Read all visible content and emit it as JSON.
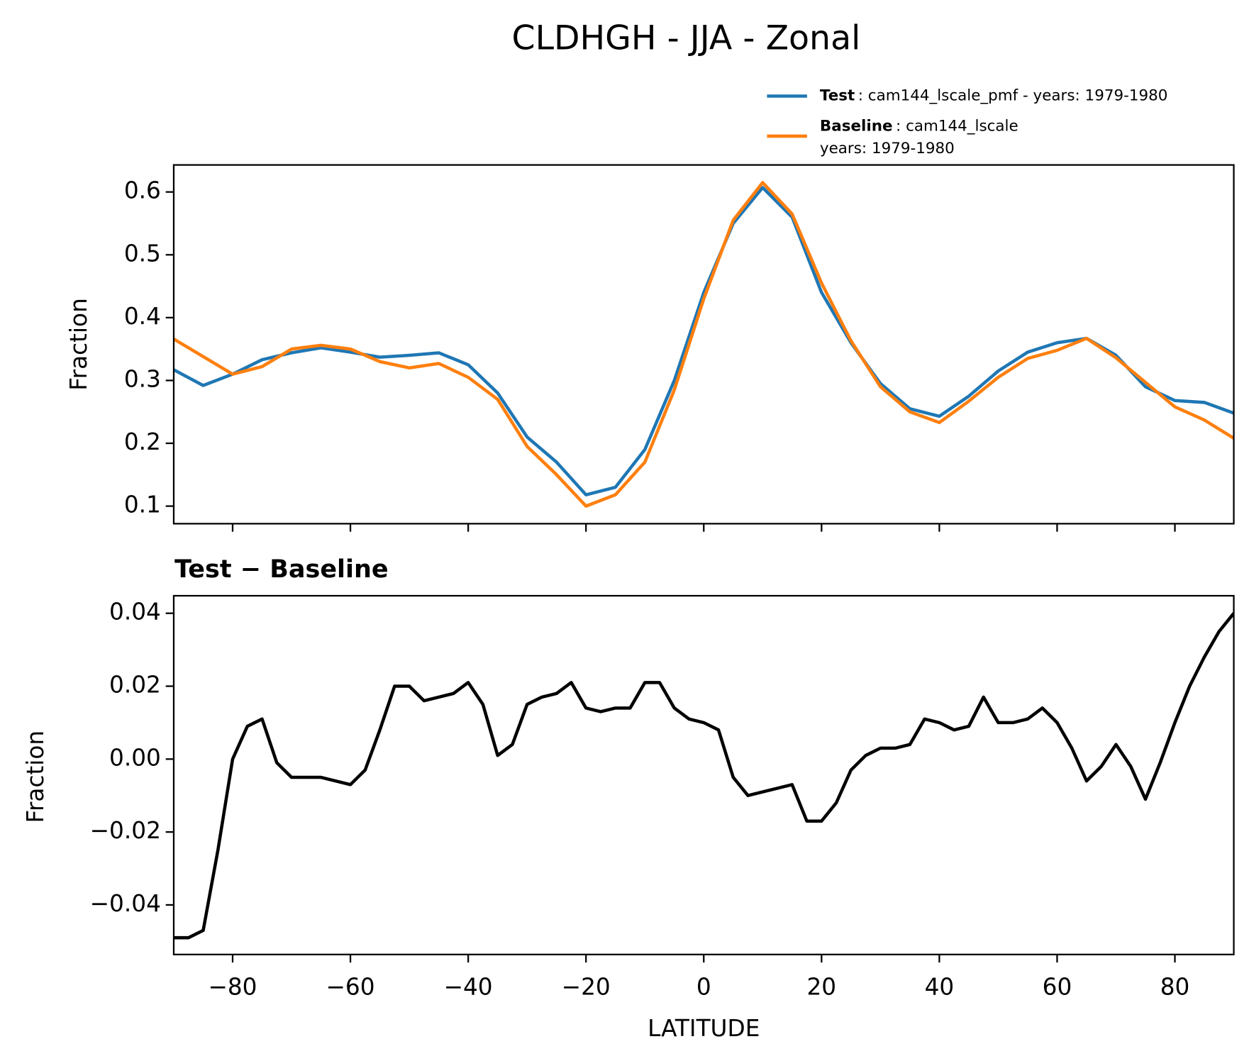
{
  "chart_data": [
    {
      "type": "line",
      "title": "CLDHGH - JJA - Zonal",
      "y_label": "Fraction",
      "x": [
        -90,
        -85,
        -80,
        -75,
        -70,
        -65,
        -60,
        -55,
        -50,
        -45,
        -40,
        -35,
        -30,
        -25,
        -20,
        -15,
        -10,
        -5,
        0,
        5,
        10,
        15,
        20,
        25,
        30,
        35,
        40,
        45,
        50,
        55,
        60,
        65,
        70,
        75,
        80,
        85,
        90
      ],
      "series": [
        {
          "name": "Test",
          "detail": [
            ": cam144_lscale_pmf - years: 1979-1980"
          ],
          "color": "#1f77b4",
          "values": [
            0.317,
            0.292,
            0.31,
            0.333,
            0.344,
            0.352,
            0.345,
            0.337,
            0.34,
            0.344,
            0.325,
            0.28,
            0.21,
            0.17,
            0.118,
            0.13,
            0.19,
            0.3,
            0.44,
            0.55,
            0.607,
            0.56,
            0.44,
            0.36,
            0.295,
            0.255,
            0.243,
            0.275,
            0.315,
            0.345,
            0.36,
            0.367,
            0.34,
            0.29,
            0.268,
            0.265,
            0.248
          ]
        },
        {
          "name": "Baseline",
          "detail": [
            ": cam144_lscale",
            "years: 1979-1980"
          ],
          "color": "#ff7f0e",
          "values": [
            0.366,
            0.338,
            0.31,
            0.322,
            0.35,
            0.356,
            0.35,
            0.33,
            0.32,
            0.327,
            0.305,
            0.27,
            0.195,
            0.15,
            0.1,
            0.118,
            0.17,
            0.285,
            0.43,
            0.555,
            0.615,
            0.565,
            0.455,
            0.363,
            0.29,
            0.25,
            0.233,
            0.267,
            0.305,
            0.335,
            0.348,
            0.367,
            0.336,
            0.297,
            0.258,
            0.237,
            0.208
          ]
        }
      ],
      "xlim": [
        -90,
        90
      ],
      "xticks": [
        -80,
        -60,
        -40,
        -20,
        0,
        20,
        40,
        60,
        80
      ],
      "ylim": [
        0.072,
        0.643
      ],
      "yticks": [
        0.1,
        0.2,
        0.3,
        0.4,
        0.5,
        0.6
      ]
    },
    {
      "type": "line",
      "subtitle": "Test − Baseline",
      "y_label": "Fraction",
      "x_label": "LATITUDE",
      "x": [
        -90,
        -87.5,
        -85,
        -82.5,
        -80,
        -77.5,
        -75,
        -72.5,
        -70,
        -67.5,
        -65,
        -62.5,
        -60,
        -57.5,
        -55,
        -52.5,
        -50,
        -47.5,
        -45,
        -42.5,
        -40,
        -37.5,
        -35,
        -32.5,
        -30,
        -27.5,
        -25,
        -22.5,
        -20,
        -17.5,
        -15,
        -12.5,
        -10,
        -7.5,
        -5,
        -2.5,
        0,
        2.5,
        5,
        7.5,
        10,
        12.5,
        15,
        17.5,
        20,
        22.5,
        25,
        27.5,
        30,
        32.5,
        35,
        37.5,
        40,
        42.5,
        45,
        47.5,
        50,
        52.5,
        55,
        57.5,
        60,
        62.5,
        65,
        67.5,
        70,
        72.5,
        75,
        77.5,
        80,
        82.5,
        85,
        87.5,
        90
      ],
      "series": [
        {
          "color": "#000000",
          "values": [
            -0.049,
            -0.049,
            -0.047,
            -0.025,
            0.0,
            0.009,
            0.011,
            -0.001,
            -0.005,
            -0.005,
            -0.005,
            -0.006,
            -0.007,
            -0.003,
            0.008,
            0.02,
            0.02,
            0.016,
            0.017,
            0.018,
            0.021,
            0.015,
            0.001,
            0.004,
            0.015,
            0.017,
            0.018,
            0.021,
            0.014,
            0.013,
            0.014,
            0.014,
            0.021,
            0.021,
            0.014,
            0.011,
            0.01,
            0.008,
            -0.005,
            -0.01,
            -0.009,
            -0.008,
            -0.007,
            -0.017,
            -0.017,
            -0.012,
            -0.003,
            0.001,
            0.003,
            0.003,
            0.004,
            0.011,
            0.01,
            0.008,
            0.009,
            0.017,
            0.01,
            0.01,
            0.011,
            0.014,
            0.01,
            0.003,
            -0.006,
            -0.002,
            0.004,
            -0.002,
            -0.011,
            -0.001,
            0.01,
            0.02,
            0.028,
            0.035,
            0.04
          ]
        }
      ],
      "xlim": [
        -90,
        90
      ],
      "xticks": [
        {
          "value": -80,
          "label": "−80"
        },
        {
          "value": -60,
          "label": "−60"
        },
        {
          "value": -40,
          "label": "−40"
        },
        {
          "value": -20,
          "label": "−20"
        },
        0,
        20,
        40,
        60,
        80
      ],
      "ylim": [
        -0.0536,
        0.0448
      ],
      "yticks": [
        {
          "value": -0.04,
          "label": "−0.04"
        },
        {
          "value": -0.02,
          "label": "−0.02"
        },
        {
          "value": 0,
          "label": "0.00"
        },
        0.02,
        0.04
      ]
    }
  ]
}
